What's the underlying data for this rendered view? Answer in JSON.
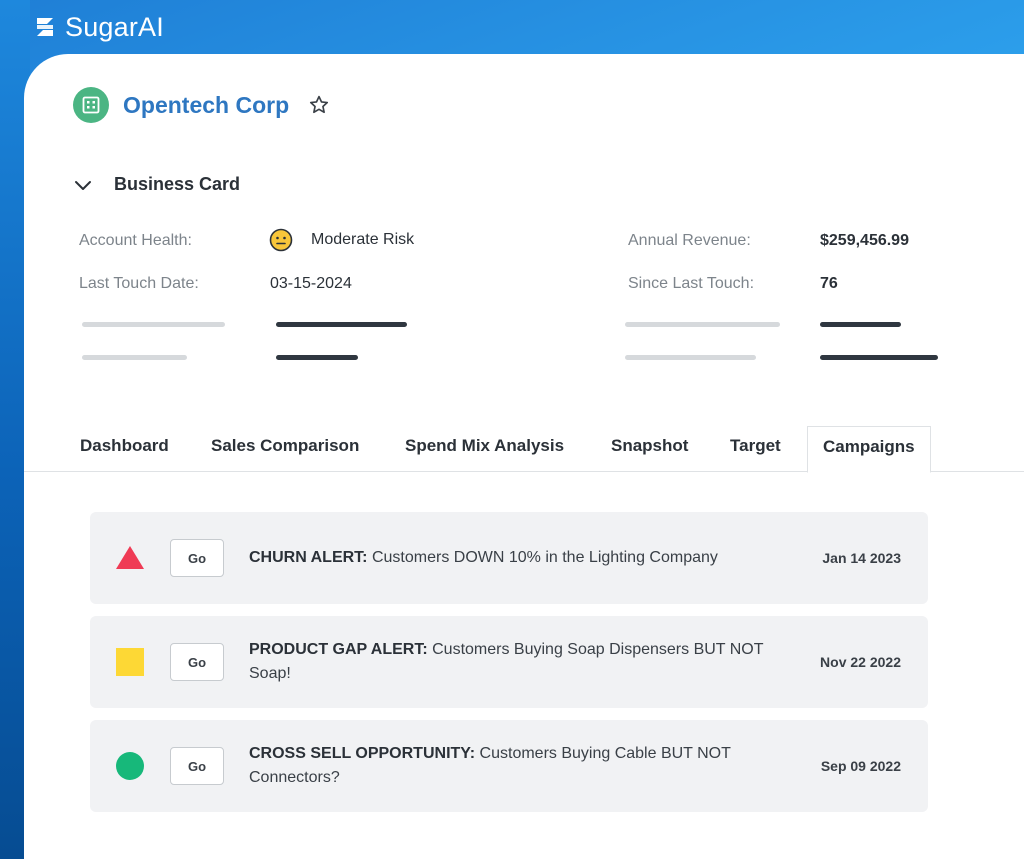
{
  "brand": {
    "name": "SugarAI",
    "logo_icon": "sugar-s-logo-icon"
  },
  "account": {
    "name": "Opentech Corp",
    "icon": "building-icon",
    "favorite_icon": "star-outline-icon"
  },
  "business_card": {
    "title": "Business Card",
    "toggle_icon": "chevron-down-icon",
    "account_health_label": "Account Health:",
    "account_health_value": "Moderate Risk",
    "account_health_icon": "neutral-face-icon",
    "last_touch_label": "Last Touch Date:",
    "last_touch_value": "03-15-2024",
    "annual_revenue_label": "Annual Revenue:",
    "annual_revenue_value": "$259,456.99",
    "since_last_touch_label": "Since Last Touch:",
    "since_last_touch_value": "76"
  },
  "tabs": [
    {
      "label": "Dashboard",
      "active": false
    },
    {
      "label": "Sales Comparison",
      "active": false
    },
    {
      "label": "Spend Mix Analysis",
      "active": false
    },
    {
      "label": "Snapshot",
      "active": false
    },
    {
      "label": "Target",
      "active": false
    },
    {
      "label": "Campaigns",
      "active": true
    }
  ],
  "campaigns": [
    {
      "indicator": "red-triangle-icon",
      "color": "#ef3b55",
      "button": "Go",
      "title": "CHURN ALERT:",
      "text": " Customers DOWN 10% in the Lighting Company",
      "date": "Jan 14 2023"
    },
    {
      "indicator": "yellow-square-icon",
      "color": "#fdd835",
      "button": "Go",
      "title": "PRODUCT GAP ALERT:",
      "text": " Customers Buying Soap Dispensers BUT NOT Soap!",
      "date": "Nov 22 2022"
    },
    {
      "indicator": "green-circle-icon",
      "color": "#17b87a",
      "button": "Go",
      "title": "CROSS SELL OPPORTUNITY:",
      "text": " Customers Buying Cable BUT NOT Connectors?",
      "date": "Sep 09 2022"
    }
  ],
  "colors": {
    "accent": "#2e77c1",
    "account_icon_bg": "#4bb583",
    "background_gradient": "#2ea3ee"
  }
}
